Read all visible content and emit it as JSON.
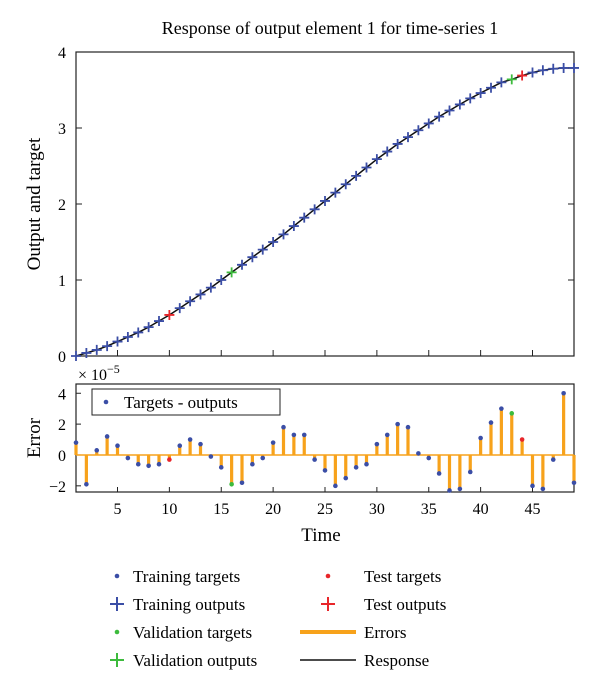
{
  "chart_data": [
    {
      "type": "line",
      "title": "Response of output element 1 for time-series 1",
      "ylabel": "Output and target",
      "xlabel": "",
      "xlim": [
        1,
        49
      ],
      "ylim": [
        0,
        4
      ],
      "yticks": [
        0,
        1,
        2,
        3,
        4
      ],
      "x": [
        1,
        2,
        3,
        4,
        5,
        6,
        7,
        8,
        9,
        10,
        11,
        12,
        13,
        14,
        15,
        16,
        17,
        18,
        19,
        20,
        21,
        22,
        23,
        24,
        25,
        26,
        27,
        28,
        29,
        30,
        31,
        32,
        33,
        34,
        35,
        36,
        37,
        38,
        39,
        40,
        41,
        42,
        43,
        44,
        45,
        46,
        47,
        48,
        49
      ],
      "values": [
        0.0,
        0.04,
        0.08,
        0.13,
        0.19,
        0.25,
        0.31,
        0.38,
        0.46,
        0.54,
        0.63,
        0.72,
        0.81,
        0.9,
        1.0,
        1.1,
        1.2,
        1.3,
        1.4,
        1.5,
        1.6,
        1.71,
        1.82,
        1.93,
        2.04,
        2.15,
        2.26,
        2.37,
        2.48,
        2.59,
        2.69,
        2.79,
        2.88,
        2.97,
        3.06,
        3.15,
        3.23,
        3.31,
        3.39,
        3.46,
        3.53,
        3.6,
        3.64,
        3.69,
        3.73,
        3.76,
        3.78,
        3.79,
        3.79
      ],
      "test_x": [
        10,
        44
      ],
      "validation_x": [
        16,
        43
      ]
    },
    {
      "type": "bar",
      "ylabel": "Error",
      "xlabel": "Time",
      "exponent_label": "× 10",
      "exponent_power": "−5",
      "xlim": [
        1,
        49
      ],
      "ylim": [
        -2.4,
        4.6
      ],
      "xticks": [
        5,
        10,
        15,
        20,
        25,
        30,
        35,
        40,
        45
      ],
      "yticks": [
        -2,
        0,
        2,
        4
      ],
      "x": [
        1,
        2,
        3,
        4,
        5,
        6,
        7,
        8,
        9,
        10,
        11,
        12,
        13,
        14,
        15,
        16,
        17,
        18,
        19,
        20,
        21,
        22,
        23,
        24,
        25,
        26,
        27,
        28,
        29,
        30,
        31,
        32,
        33,
        34,
        35,
        36,
        37,
        38,
        39,
        40,
        41,
        42,
        43,
        44,
        45,
        46,
        47,
        48,
        49
      ],
      "values": [
        0.8,
        -1.9,
        0.3,
        1.2,
        0.6,
        -0.2,
        -0.6,
        -0.7,
        -0.6,
        -0.3,
        0.6,
        1.0,
        0.7,
        -0.1,
        -0.8,
        -1.9,
        -1.8,
        -0.6,
        -0.2,
        0.8,
        1.8,
        1.3,
        1.3,
        -0.3,
        -1.0,
        -2.0,
        -1.5,
        -0.8,
        -0.6,
        0.7,
        1.3,
        2.0,
        1.8,
        0.1,
        -0.2,
        -1.2,
        -2.3,
        -2.2,
        -1.1,
        1.1,
        2.1,
        3.0,
        2.7,
        1.0,
        -2.0,
        -2.2,
        -0.3,
        4.0,
        -1.8
      ],
      "legend": "Targets - outputs"
    }
  ],
  "legend": {
    "training_targets": "Training targets",
    "training_outputs": "Training outputs",
    "validation_targets": "Validation targets",
    "validation_outputs": "Validation outputs",
    "test_targets": "Test targets",
    "test_outputs": "Test outputs",
    "errors": "Errors",
    "response": "Response"
  },
  "colors": {
    "training": "#3b4ea6",
    "validation": "#3dbb3d",
    "test": "#e8262a",
    "errors": "#f7a21b",
    "response": "#111111"
  }
}
